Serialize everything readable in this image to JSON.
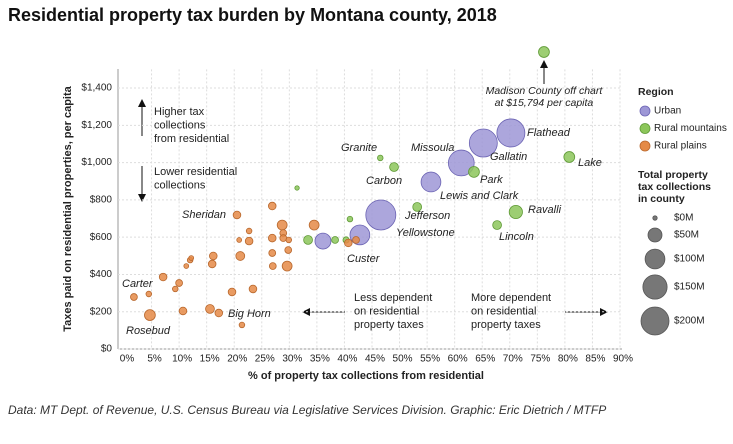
{
  "chart_data": {
    "type": "bubble",
    "title": "Residential property tax burden by Montana county, 2018",
    "x_label": "% of property tax collections from residential",
    "y_label": "Taxes paid on residential properties, per capita",
    "source": "Data: MT Dept. of Revenue, U.S. Census Bureau via Legislative Services Division. Graphic: Eric Dietrich / MTFP",
    "xlim": [
      0,
      90
    ],
    "ylim": [
      0,
      1500
    ],
    "xticks": [
      {
        "value": 0,
        "label": "0%"
      },
      {
        "value": 5,
        "label": "5%"
      },
      {
        "value": 10,
        "label": "10%"
      },
      {
        "value": 15,
        "label": "15%"
      },
      {
        "value": 20,
        "label": "20%"
      },
      {
        "value": 25,
        "label": "25%"
      },
      {
        "value": 30,
        "label": "30%"
      },
      {
        "value": 35,
        "label": "35%"
      },
      {
        "value": 40,
        "label": "40%"
      },
      {
        "value": 45,
        "label": "45%"
      },
      {
        "value": 50,
        "label": "50%"
      },
      {
        "value": 55,
        "label": "55%"
      },
      {
        "value": 60,
        "label": "60%"
      },
      {
        "value": 65,
        "label": "65%"
      },
      {
        "value": 70,
        "label": "70%"
      },
      {
        "value": 75,
        "label": "75%"
      },
      {
        "value": 80,
        "label": "80%"
      },
      {
        "value": 85,
        "label": "85%"
      },
      {
        "value": 90,
        "label": "90%"
      }
    ],
    "yticks": [
      {
        "value": 0,
        "label": "$0"
      },
      {
        "value": 200,
        "label": "$200"
      },
      {
        "value": 400,
        "label": "$400"
      },
      {
        "value": 600,
        "label": "$600"
      },
      {
        "value": 800,
        "label": "$800"
      },
      {
        "value": 1000,
        "label": "$1,000"
      },
      {
        "value": 1200,
        "label": "$1,200"
      },
      {
        "value": 1400,
        "label": "$1,400"
      }
    ],
    "grid": true,
    "legend_title": "Region",
    "size_legend_title": [
      "Total property",
      "tax collections",
      "in county"
    ],
    "size_legend": [
      {
        "value": 0,
        "label": "$0M"
      },
      {
        "value": 50,
        "label": "$50M"
      },
      {
        "value": 100,
        "label": "$100M"
      },
      {
        "value": 150,
        "label": "$150M"
      },
      {
        "value": 200,
        "label": "$200M"
      }
    ],
    "series": [
      {
        "name": "Urban",
        "color": "#9d97d6",
        "x": [
          70.2,
          65.2,
          61.2,
          55.7,
          46.6,
          42.8,
          36.1
        ],
        "values": [
          1159,
          1105,
          998,
          896,
          719,
          612,
          579
        ],
        "sizes": [
          200,
          200,
          170,
          100,
          230,
          100,
          65
        ],
        "labels": [
          "Flathead",
          "Gallatin",
          "Missoula",
          "Lewis and Clark",
          "Yellowstone",
          null,
          null
        ]
      },
      {
        "name": "Rural mountains",
        "color": "#8cc65a",
        "x": [
          80.8,
          71.1,
          67.7,
          63.5,
          49.0,
          46.5,
          53.2,
          31.4,
          41.0,
          33.4,
          38.3,
          40.3
        ],
        "values": [
          1030,
          735,
          665,
          950,
          976,
          1025,
          762,
          864,
          697,
          585,
          585,
          585
        ],
        "sizes": [
          30,
          45,
          20,
          30,
          20,
          8,
          20,
          5,
          8,
          20,
          12,
          10
        ],
        "labels": [
          "Lake",
          "Ravalli",
          "Lincoln",
          "Park",
          "Carbon",
          "Granite",
          "Jefferson",
          null,
          null,
          null,
          null,
          null
        ]
      },
      {
        "name": "Rural plains",
        "color": "#e58a46",
        "x": [
          1.8,
          4.5,
          4.7,
          7.1,
          9.3,
          10.0,
          10.7,
          11.3,
          12.0,
          12.2,
          15.6,
          16.0,
          16.2,
          17.2,
          19.6,
          20.5,
          20.9,
          21.1,
          21.4,
          22.7,
          22.7,
          23.4,
          26.9,
          26.9,
          26.9,
          27.0,
          28.7,
          28.9,
          28.9,
          29.6,
          29.9,
          29.8,
          34.5,
          40.7,
          42.1
        ],
        "values": [
          279,
          295,
          182,
          386,
          322,
          354,
          204,
          445,
          477,
          488,
          215,
          456,
          499,
          193,
          306,
          719,
          585,
          499,
          129,
          633,
          579,
          322,
          767,
          595,
          515,
          445,
          665,
          622,
          595,
          445,
          585,
          531,
          665,
          569,
          585
        ],
        "sizes": [
          12,
          8,
          30,
          15,
          8,
          12,
          15,
          6,
          8,
          6,
          20,
          15,
          15,
          15,
          15,
          15,
          6,
          20,
          8,
          8,
          15,
          15,
          15,
          15,
          12,
          12,
          25,
          12,
          12,
          25,
          8,
          12,
          25,
          15,
          12
        ],
        "labels": [
          "Carter",
          null,
          "Rosebud",
          null,
          null,
          null,
          null,
          null,
          null,
          null,
          null,
          null,
          null,
          "Big Horn",
          null,
          "Sheridan",
          null,
          null,
          null,
          null,
          null,
          null,
          null,
          null,
          null,
          null,
          null,
          null,
          null,
          null,
          null,
          null,
          null,
          "Custer",
          null
        ]
      }
    ],
    "offchart": {
      "series": 1,
      "x": 76.2,
      "size": 30,
      "label": [
        "Madison County off chart",
        "at $15,794 per capita"
      ]
    },
    "annotations": [
      [
        "Higher tax",
        "collections",
        "from residential"
      ],
      [
        "Lower residential",
        "collections"
      ],
      [
        "Less dependent",
        "on residential",
        "property taxes"
      ],
      [
        "More dependent",
        "on residential",
        "property taxes"
      ]
    ]
  }
}
